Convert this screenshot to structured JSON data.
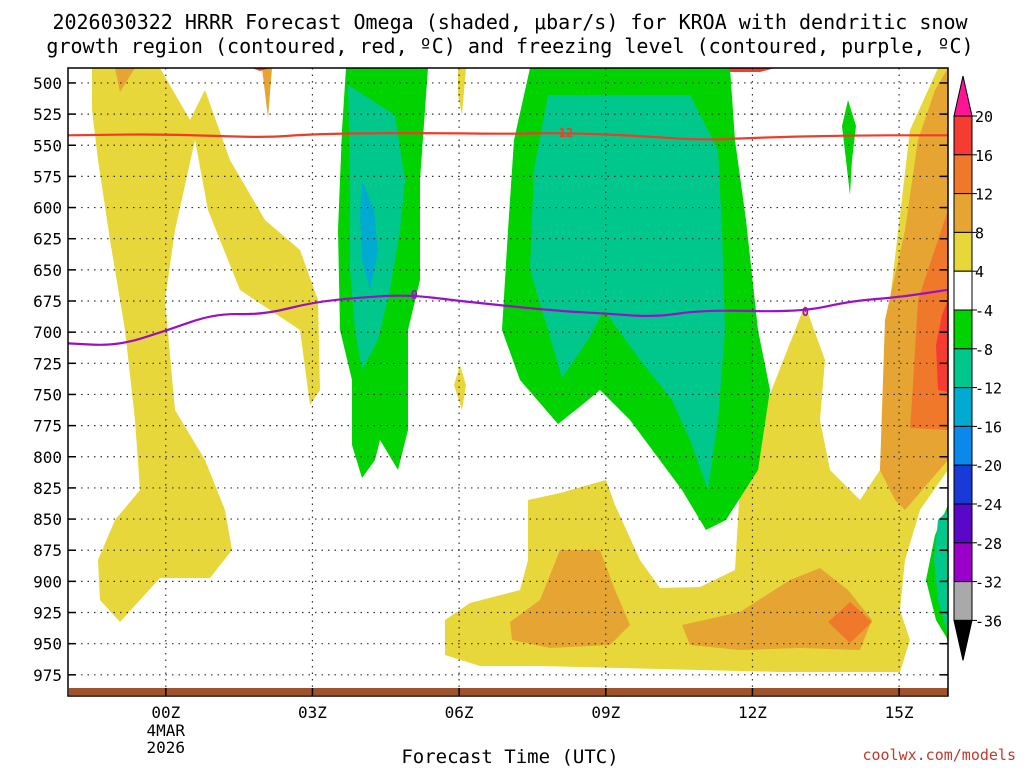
{
  "chart_data": {
    "type": "time-height",
    "title": [
      "2026030322 HRRR Forecast Omega (shaded, μbar/s) for KROA with dendritic snow",
      "growth region (contoured, red, ºC) and freezing level (contoured, purple, ºC)"
    ],
    "xlabel": "Forecast Time (UTC)",
    "ylabel": "",
    "x_ticks": [
      {
        "label": "00Z",
        "hour": 0,
        "sub": [
          "4MAR",
          "2026"
        ]
      },
      {
        "label": "03Z",
        "hour": 3,
        "sub": []
      },
      {
        "label": "06Z",
        "hour": 6,
        "sub": []
      },
      {
        "label": "09Z",
        "hour": 9,
        "sub": []
      },
      {
        "label": "12Z",
        "hour": 12,
        "sub": []
      },
      {
        "label": "15Z",
        "hour": 15,
        "sub": []
      }
    ],
    "xlim": [
      -2,
      16
    ],
    "y_ticks": [
      500,
      525,
      550,
      575,
      600,
      625,
      650,
      675,
      700,
      725,
      750,
      775,
      800,
      825,
      850,
      875,
      900,
      925,
      950,
      975
    ],
    "ylim": [
      488,
      992
    ],
    "colorbar": {
      "labels": [
        "20",
        "16",
        "12",
        "8",
        "4",
        "-4",
        "-8",
        "-12",
        "-16",
        "-20",
        "-24",
        "-28",
        "-32",
        "-36"
      ],
      "colors": [
        "#ff1493",
        "#f43c32",
        "#f0782a",
        "#e6a532",
        "#e8d73a",
        "#ffffff",
        "#00d300",
        "#00c88c",
        "#00aad0",
        "#0a88ec",
        "#1a3ad8",
        "#5a08c8",
        "#9a00c8",
        "#a9a9a9",
        "#000000"
      ]
    },
    "contours": [
      {
        "name": "dendritic snow growth",
        "label": "-12",
        "color": "#f03a2a",
        "points": [
          [
            -2,
            542
          ],
          [
            0,
            541
          ],
          [
            2,
            544
          ],
          [
            3,
            541
          ],
          [
            5,
            540
          ],
          [
            7,
            541
          ],
          [
            8,
            540
          ],
          [
            9.5,
            542
          ],
          [
            11,
            546
          ],
          [
            12,
            544
          ],
          [
            14,
            542
          ],
          [
            16,
            542
          ]
        ]
      },
      {
        "name": "freezing level",
        "label": "0",
        "color": "#9a10c8",
        "points": [
          [
            -2,
            709
          ],
          [
            -1,
            711
          ],
          [
            0,
            699
          ],
          [
            1,
            685
          ],
          [
            2,
            686
          ],
          [
            3,
            676
          ],
          [
            4,
            672
          ],
          [
            5,
            670
          ],
          [
            6,
            675
          ],
          [
            8,
            683
          ],
          [
            9,
            685
          ],
          [
            10,
            688
          ],
          [
            11,
            682
          ],
          [
            13,
            684
          ],
          [
            14,
            675
          ],
          [
            15,
            672
          ],
          [
            16,
            666
          ]
        ]
      }
    ],
    "source": "coolwx.com/models"
  }
}
